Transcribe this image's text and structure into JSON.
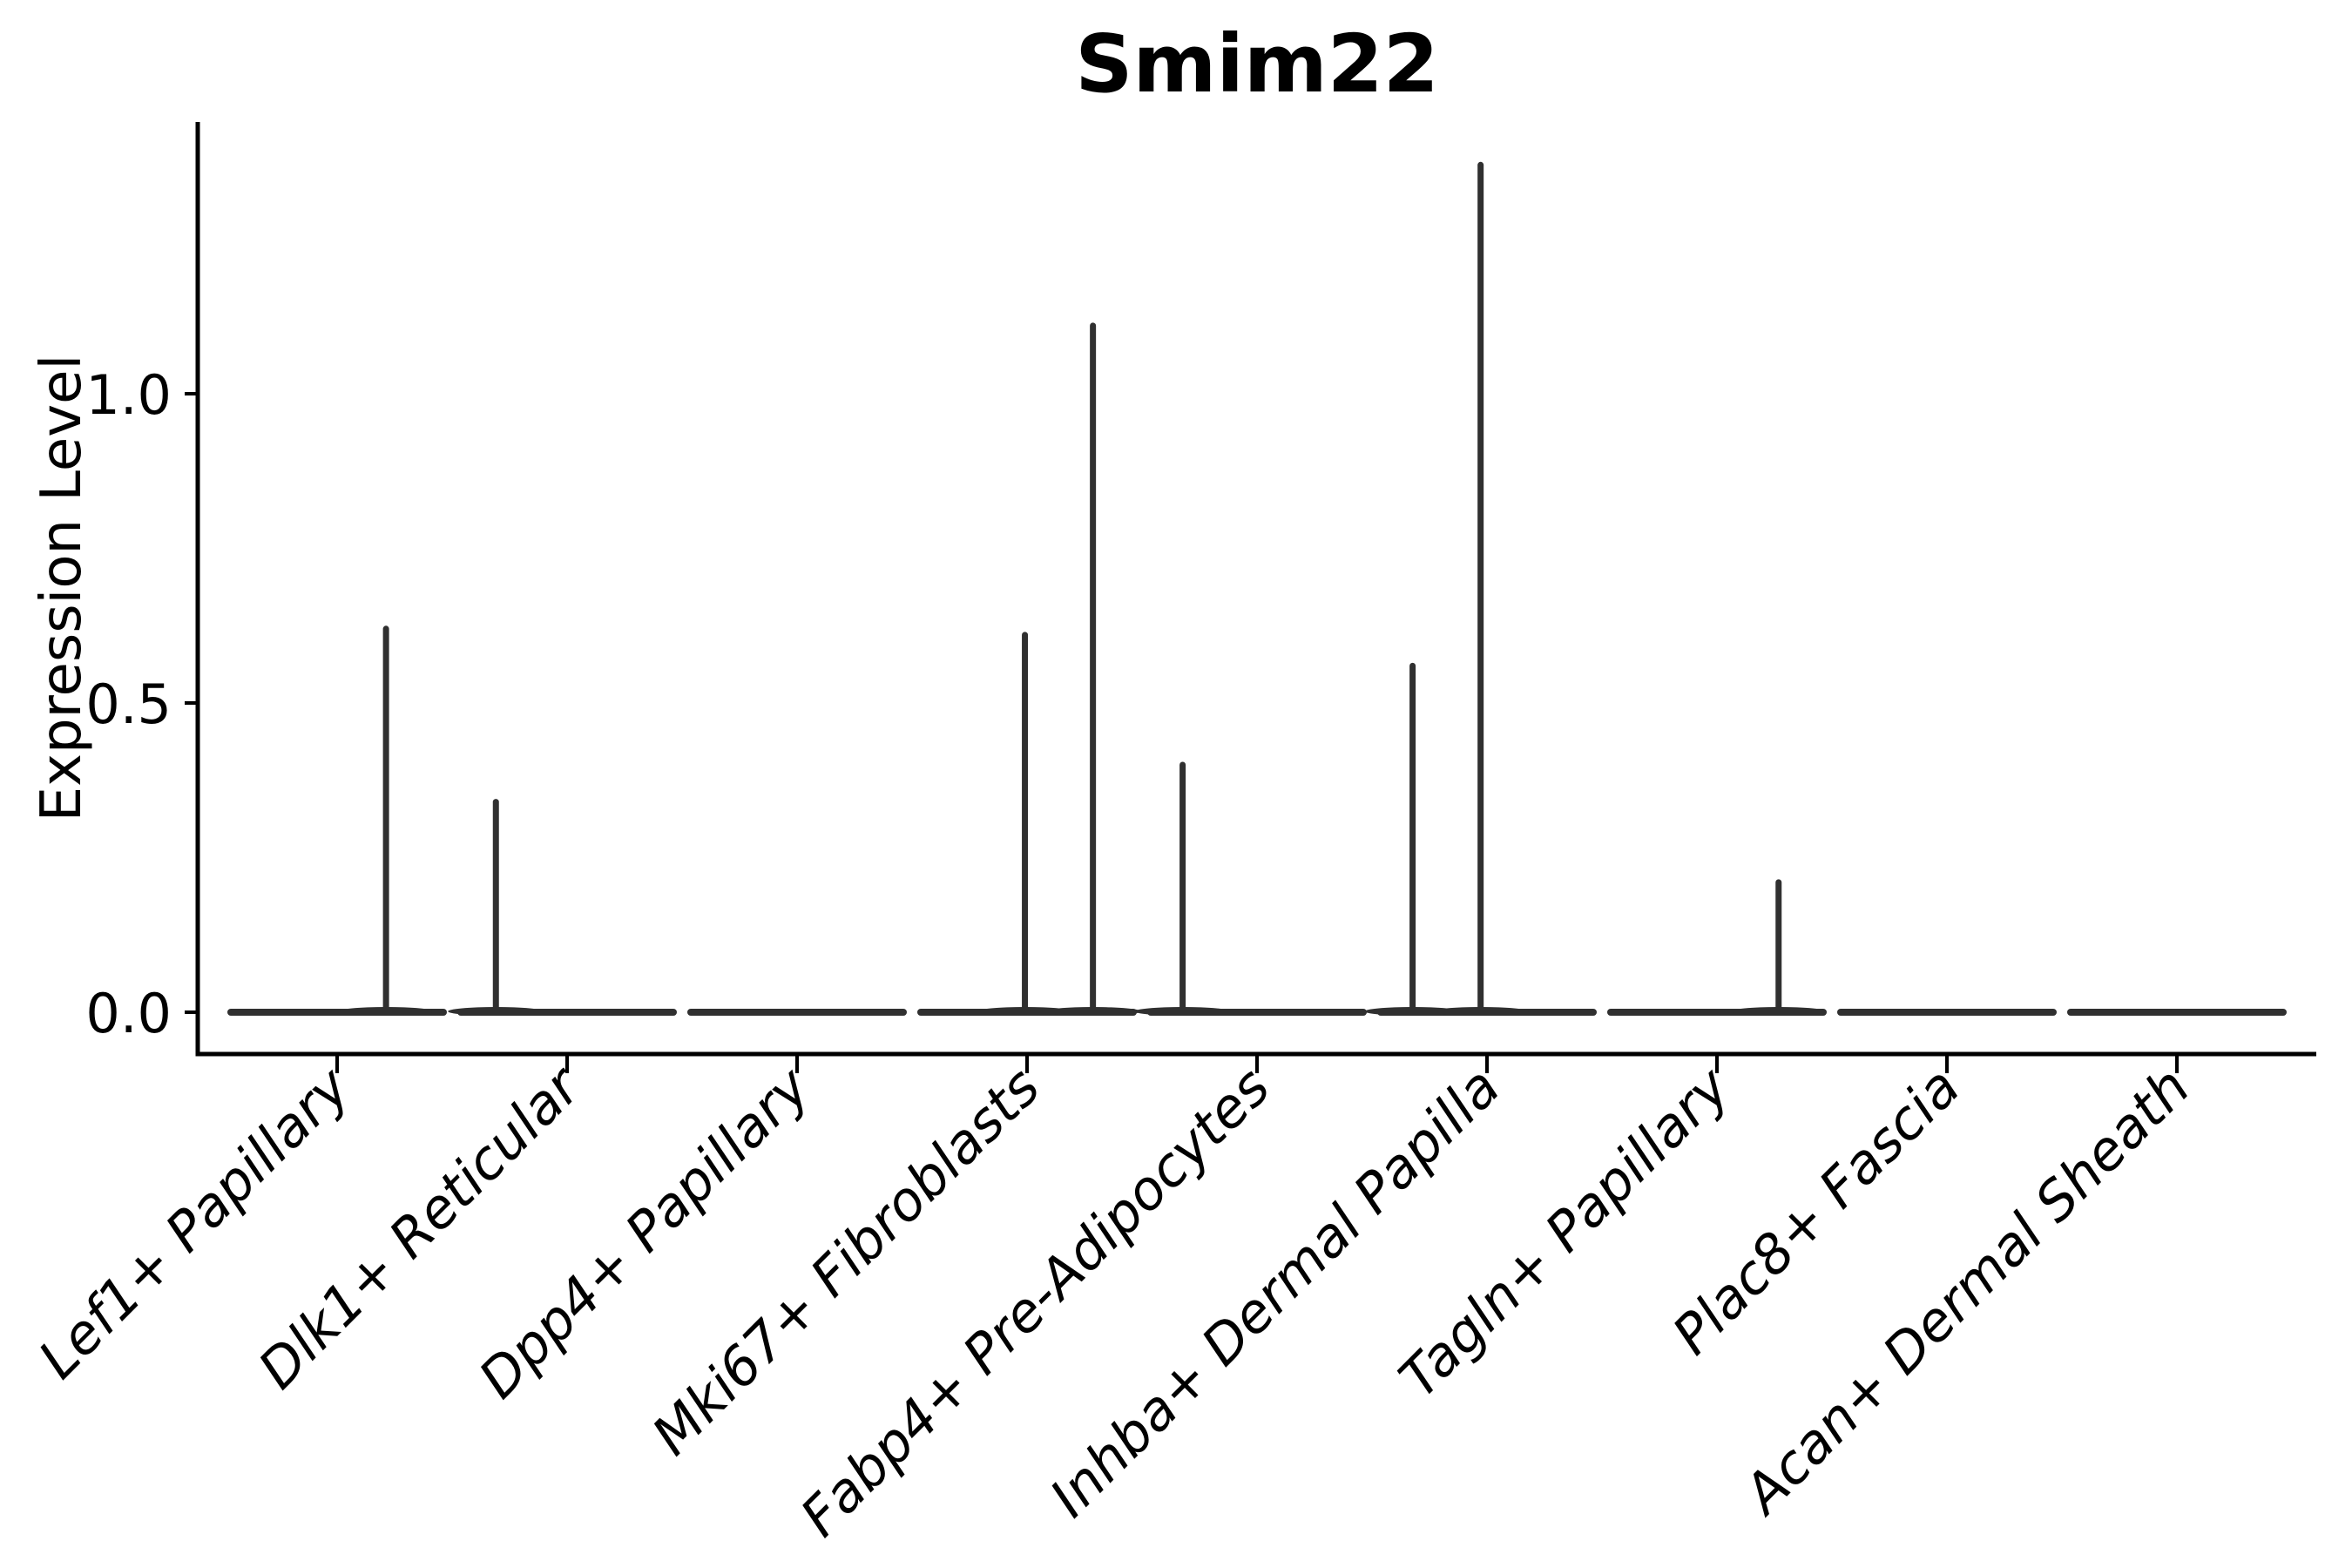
{
  "figure": {
    "title": "Smim22",
    "ylabel": "Expression Level"
  },
  "chart_data": {
    "type": "violin",
    "title": "Smim22",
    "xlabel": "",
    "ylabel": "Expression Level",
    "grid": false,
    "legend": "none",
    "ylim": [
      -0.07,
      1.44
    ],
    "ytick_values": [
      0.0,
      0.5,
      1.0
    ],
    "ytick_labels": [
      "0.0",
      "0.5",
      "1.0"
    ],
    "violin_color": "#303030",
    "categories": [
      {
        "label": "Lef1+ Papillary",
        "baseline_value": 0.0,
        "points": [
          {
            "value": 0.62,
            "x_offset_frac": 0.46
          }
        ]
      },
      {
        "label": "Dlk1+ Reticular",
        "baseline_value": 0.0,
        "points": [
          {
            "value": 0.34,
            "x_offset_frac": -0.67
          }
        ]
      },
      {
        "label": "Dpp4+ Papillary",
        "baseline_value": 0.0,
        "points": []
      },
      {
        "label": "Mki67+ Fibroblasts",
        "baseline_value": 0.0,
        "points": [
          {
            "value": 0.61,
            "x_offset_frac": -0.02
          },
          {
            "value": 1.11,
            "x_offset_frac": 0.62
          }
        ]
      },
      {
        "label": "Fabp4+ Pre-Adipocytes",
        "baseline_value": 0.0,
        "points": [
          {
            "value": 0.4,
            "x_offset_frac": -0.7
          }
        ]
      },
      {
        "label": "Inhba+ Dermal Papilla",
        "baseline_value": 0.0,
        "points": [
          {
            "value": 0.56,
            "x_offset_frac": -0.7
          },
          {
            "value": 1.37,
            "x_offset_frac": -0.06
          }
        ]
      },
      {
        "label": "Tagln+ Papillary",
        "baseline_value": 0.0,
        "points": [
          {
            "value": 0.21,
            "x_offset_frac": 0.58
          }
        ]
      },
      {
        "label": "Plac8+ Fascia",
        "baseline_value": 0.0,
        "points": []
      },
      {
        "label": "Acan+ Dermal Sheath",
        "baseline_value": 0.0,
        "points": []
      }
    ]
  }
}
